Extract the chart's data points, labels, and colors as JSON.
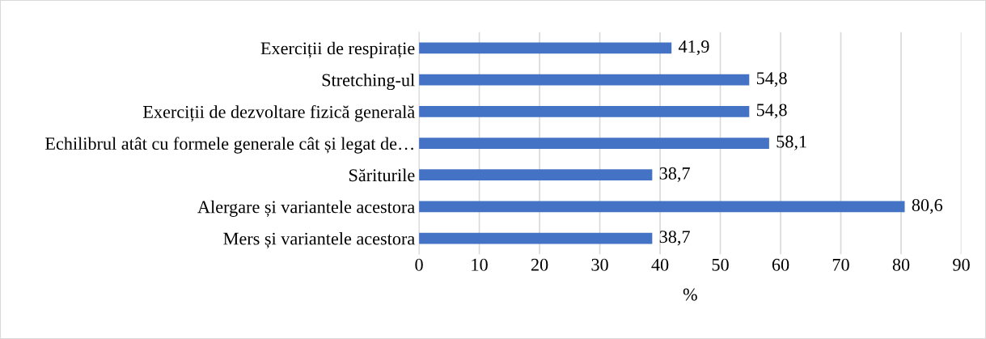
{
  "chart_data": {
    "type": "bar",
    "orientation": "horizontal",
    "xlabel": "%",
    "categories": [
      "Exerciții de respirație",
      "Stretching-ul",
      "Exerciții de dezvoltare fizică generală",
      "Echilibrul atât cu formele generale cât și legat de…",
      "Săriturile",
      "Alergare și variantele acestora",
      "Mers și variantele acestora"
    ],
    "values": [
      41.9,
      54.8,
      54.8,
      58.1,
      38.7,
      80.6,
      38.7
    ],
    "value_labels": [
      "41,9",
      "54,8",
      "54,8",
      "58,1",
      "38,7",
      "80,6",
      "38,7"
    ],
    "color": "#4472c4",
    "xlim": [
      0,
      90
    ],
    "xticks": [
      0,
      10,
      20,
      30,
      40,
      50,
      60,
      70,
      80,
      90
    ],
    "grid": "x",
    "legend": false
  }
}
